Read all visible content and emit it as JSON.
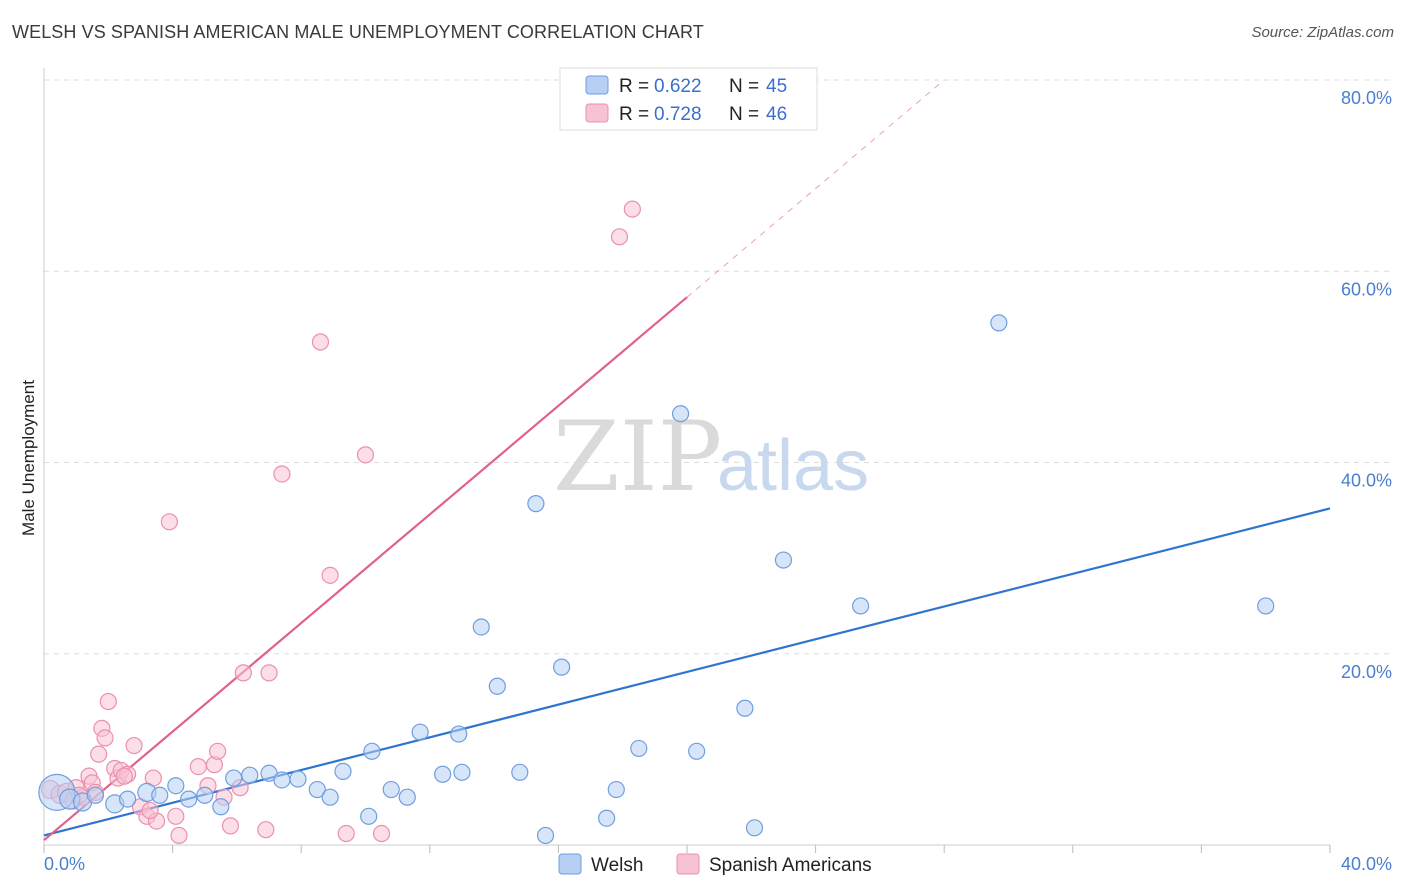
{
  "title": "WELSH VS SPANISH AMERICAN MALE UNEMPLOYMENT CORRELATION CHART",
  "source": "Source: ZipAtlas.com",
  "watermark": {
    "zip": "ZIP",
    "atlas": "atlas"
  },
  "colors": {
    "welsh_fill": "#b6cff3",
    "welsh_stroke": "#6f9ee0",
    "welsh_line": "#2f75d0",
    "spanish_fill": "#f7c3d3",
    "spanish_stroke": "#ec8fae",
    "spanish_line": "#e0618e",
    "tick": "#4a7fd0",
    "grid": "#dddddd"
  },
  "legend": {
    "r_label": "R = ",
    "n_label": "N = ",
    "rows": [
      {
        "series": "Welsh",
        "r": "0.622",
        "n": "45"
      },
      {
        "series": "Spanish Americans",
        "r": "0.728",
        "n": "46"
      }
    ]
  },
  "bottom_legend": [
    "Welsh",
    "Spanish Americans"
  ],
  "chart_data": {
    "type": "scatter",
    "title": "WELSH VS SPANISH AMERICAN MALE UNEMPLOYMENT CORRELATION CHART",
    "xlabel": "",
    "ylabel": "Male Unemployment",
    "xlim": [
      0,
      40
    ],
    "ylim": [
      0,
      80
    ],
    "x_tick_labels": [
      "0.0%",
      "40.0%"
    ],
    "y_tick_labels": [
      "20.0%",
      "40.0%",
      "60.0%",
      "80.0%"
    ],
    "y_ticks": [
      20,
      40,
      60,
      80
    ],
    "grid": true,
    "legend_position": "top-center",
    "series": [
      {
        "name": "Welsh",
        "r": 0.622,
        "n": 45,
        "trend": {
          "x0": 0,
          "y0": 1.0,
          "x1": 40,
          "y1": 35.2,
          "solid_until": 40
        },
        "points": [
          [
            0.4,
            5.5,
            18
          ],
          [
            0.8,
            4.8,
            10
          ],
          [
            1.2,
            4.5,
            9
          ],
          [
            2.2,
            4.3,
            9
          ],
          [
            2.6,
            4.8,
            8
          ],
          [
            3.2,
            5.5,
            9
          ],
          [
            3.6,
            5.2,
            8
          ],
          [
            4.1,
            6.2,
            8
          ],
          [
            4.5,
            4.8,
            8
          ],
          [
            5.0,
            5.2,
            8
          ],
          [
            5.5,
            4.0,
            8
          ],
          [
            5.9,
            7.0,
            8
          ],
          [
            6.4,
            7.3,
            8
          ],
          [
            7.0,
            7.5,
            8
          ],
          [
            7.4,
            6.8,
            8
          ],
          [
            7.9,
            6.9,
            8
          ],
          [
            8.5,
            5.8,
            8
          ],
          [
            8.9,
            5.0,
            8
          ],
          [
            9.3,
            7.7,
            8
          ],
          [
            10.1,
            3.0,
            8
          ],
          [
            10.2,
            9.8,
            8
          ],
          [
            10.8,
            5.8,
            8
          ],
          [
            11.3,
            5.0,
            8
          ],
          [
            11.7,
            11.8,
            8
          ],
          [
            12.4,
            7.4,
            8
          ],
          [
            12.9,
            11.6,
            8
          ],
          [
            13.0,
            7.6,
            8
          ],
          [
            13.6,
            22.8,
            8
          ],
          [
            14.1,
            16.6,
            8
          ],
          [
            14.8,
            7.6,
            8
          ],
          [
            15.3,
            35.7,
            8
          ],
          [
            15.6,
            1.0,
            8
          ],
          [
            16.1,
            18.6,
            8
          ],
          [
            17.5,
            2.8,
            8
          ],
          [
            17.8,
            5.8,
            8
          ],
          [
            18.5,
            10.1,
            8
          ],
          [
            19.8,
            45.1,
            8
          ],
          [
            20.3,
            9.8,
            8
          ],
          [
            21.8,
            14.3,
            8
          ],
          [
            22.1,
            1.8,
            8
          ],
          [
            23.0,
            29.8,
            8
          ],
          [
            25.4,
            25.0,
            8
          ],
          [
            29.7,
            54.6,
            8
          ],
          [
            38.0,
            25.0,
            8
          ],
          [
            1.6,
            5.2,
            8
          ]
        ]
      },
      {
        "name": "Spanish Americans",
        "r": 0.728,
        "n": 46,
        "trend": {
          "x0": 0,
          "y0": 0.5,
          "x1": 28,
          "y1": 80,
          "solid_until": 20
        },
        "points": [
          [
            0.2,
            5.8,
            9
          ],
          [
            0.5,
            5.3,
            9
          ],
          [
            0.7,
            5.5,
            9
          ],
          [
            1.0,
            6.0,
            8
          ],
          [
            1.2,
            5.0,
            8
          ],
          [
            1.4,
            7.2,
            8
          ],
          [
            1.5,
            6.5,
            8
          ],
          [
            1.6,
            5.5,
            8
          ],
          [
            1.7,
            9.5,
            8
          ],
          [
            1.8,
            12.2,
            8
          ],
          [
            1.9,
            11.2,
            8
          ],
          [
            2.0,
            15.0,
            8
          ],
          [
            2.2,
            8.0,
            8
          ],
          [
            2.3,
            7.0,
            8
          ],
          [
            2.4,
            7.8,
            8
          ],
          [
            2.6,
            7.4,
            8
          ],
          [
            2.8,
            10.4,
            8
          ],
          [
            3.0,
            4.0,
            8
          ],
          [
            3.2,
            3.0,
            8
          ],
          [
            3.4,
            7.0,
            8
          ],
          [
            3.5,
            2.5,
            8
          ],
          [
            3.9,
            33.8,
            8
          ],
          [
            4.1,
            3.0,
            8
          ],
          [
            4.2,
            1.0,
            8
          ],
          [
            4.8,
            8.2,
            8
          ],
          [
            5.1,
            6.2,
            8
          ],
          [
            5.3,
            8.4,
            8
          ],
          [
            5.4,
            9.8,
            8
          ],
          [
            5.6,
            5.0,
            8
          ],
          [
            5.8,
            2.0,
            8
          ],
          [
            6.1,
            6.0,
            8
          ],
          [
            6.2,
            18.0,
            8
          ],
          [
            6.9,
            1.6,
            8
          ],
          [
            7.0,
            18.0,
            8
          ],
          [
            7.4,
            38.8,
            8
          ],
          [
            8.9,
            28.2,
            8
          ],
          [
            8.6,
            52.6,
            8
          ],
          [
            9.4,
            1.2,
            8
          ],
          [
            10.0,
            40.8,
            8
          ],
          [
            10.5,
            1.2,
            8
          ],
          [
            17.9,
            63.6,
            8
          ],
          [
            18.3,
            66.5,
            8
          ],
          [
            0.9,
            4.6,
            8
          ],
          [
            1.1,
            5.2,
            8
          ],
          [
            3.3,
            3.6,
            8
          ],
          [
            2.5,
            7.2,
            8
          ]
        ]
      }
    ]
  }
}
